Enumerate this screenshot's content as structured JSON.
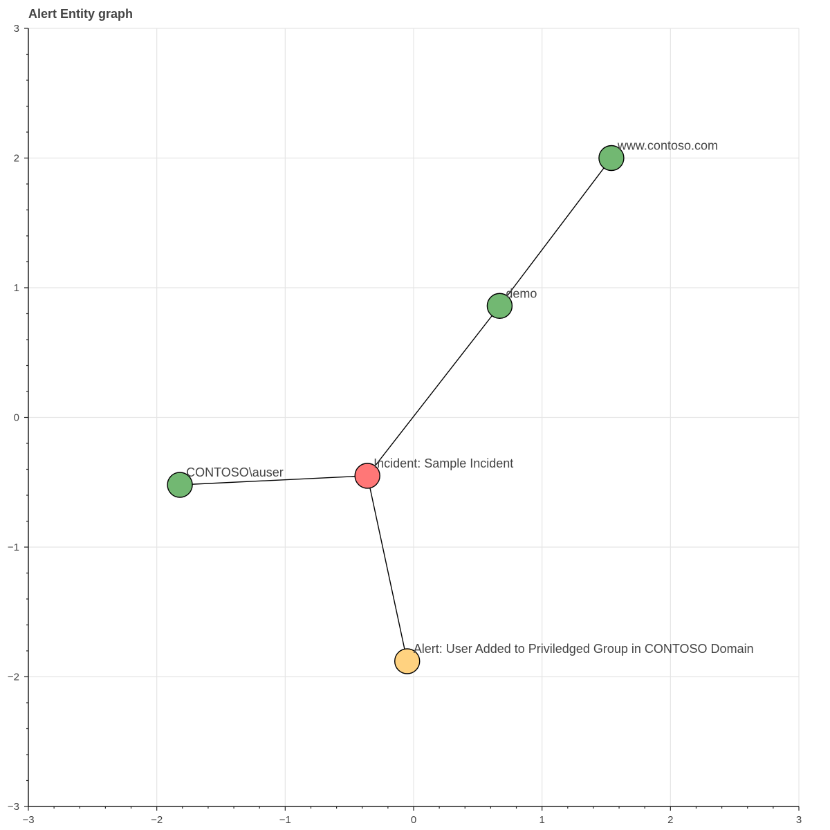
{
  "chart_data": {
    "type": "scatter",
    "title": "Alert Entity graph",
    "xlim": [
      -3,
      3
    ],
    "ylim": [
      -3,
      3
    ],
    "grid": true,
    "x_ticks": [
      -3,
      -2,
      -1,
      0,
      1,
      2,
      3
    ],
    "y_ticks": [
      -3,
      -2,
      -1,
      0,
      1,
      2,
      3
    ],
    "x_tick_labels": [
      "−3",
      "−2",
      "−1",
      "0",
      "1",
      "2",
      "3"
    ],
    "y_tick_labels": [
      "−3",
      "−2",
      "−1",
      "0",
      "1",
      "2",
      "3"
    ],
    "nodes": [
      {
        "id": "incident",
        "label": "Incident: Sample Incident",
        "x": -0.36,
        "y": -0.45,
        "color": "#ff7777"
      },
      {
        "id": "alert",
        "label": "Alert: User Added to Priviledged Group in CONTOSO Domain",
        "x": -0.05,
        "y": -1.88,
        "color": "#ffd280"
      },
      {
        "id": "auser",
        "label": "CONTOSO\\auser",
        "x": -1.82,
        "y": -0.52,
        "color": "#72b872"
      },
      {
        "id": "demo",
        "label": "demo",
        "x": 0.67,
        "y": 0.86,
        "color": "#72b872"
      },
      {
        "id": "contoso",
        "label": "www.contoso.com",
        "x": 1.54,
        "y": 2.0,
        "color": "#72b872"
      }
    ],
    "edges": [
      {
        "source": "incident",
        "target": "alert"
      },
      {
        "source": "incident",
        "target": "auser"
      },
      {
        "source": "incident",
        "target": "demo"
      },
      {
        "source": "demo",
        "target": "contoso"
      }
    ]
  }
}
